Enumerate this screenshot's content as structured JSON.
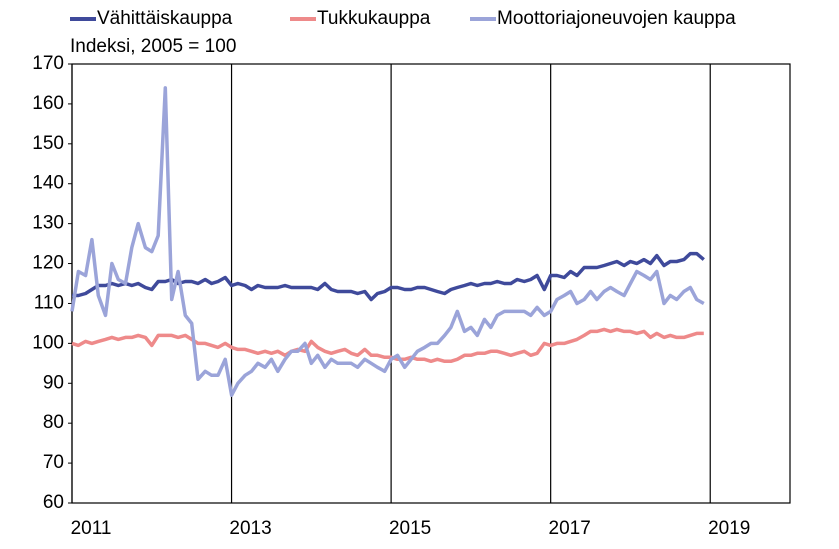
{
  "chart_data": {
    "type": "line",
    "subtitle": "Indeksi, 2005 = 100",
    "x": [
      2011.0,
      2011.08,
      2011.17,
      2011.25,
      2011.33,
      2011.42,
      2011.5,
      2011.58,
      2011.67,
      2011.75,
      2011.83,
      2011.92,
      2012.0,
      2012.08,
      2012.17,
      2012.25,
      2012.33,
      2012.42,
      2012.5,
      2012.58,
      2012.67,
      2012.75,
      2012.83,
      2012.92,
      2013.0,
      2013.08,
      2013.17,
      2013.25,
      2013.33,
      2013.42,
      2013.5,
      2013.58,
      2013.67,
      2013.75,
      2013.83,
      2013.92,
      2014.0,
      2014.08,
      2014.17,
      2014.25,
      2014.33,
      2014.42,
      2014.5,
      2014.58,
      2014.67,
      2014.75,
      2014.83,
      2014.92,
      2015.0,
      2015.08,
      2015.17,
      2015.25,
      2015.33,
      2015.42,
      2015.5,
      2015.58,
      2015.67,
      2015.75,
      2015.83,
      2015.92,
      2016.0,
      2016.08,
      2016.17,
      2016.25,
      2016.33,
      2016.42,
      2016.5,
      2016.58,
      2016.67,
      2016.75,
      2016.83,
      2016.92,
      2017.0,
      2017.08,
      2017.17,
      2017.25,
      2017.33,
      2017.42,
      2017.5,
      2017.58,
      2017.67,
      2017.75,
      2017.83,
      2017.92,
      2018.0,
      2018.08,
      2018.17,
      2018.25,
      2018.33,
      2018.42,
      2018.5,
      2018.58,
      2018.67,
      2018.75,
      2018.83,
      2018.92
    ],
    "series": [
      {
        "name": "Vähittäiskauppa",
        "color": "#3f4a9b",
        "values": [
          112,
          112,
          112.5,
          113.5,
          114.5,
          114.5,
          115,
          114.5,
          115,
          114.5,
          115,
          114,
          113.5,
          115.5,
          115.5,
          116,
          115,
          115.5,
          115.5,
          115,
          116,
          115,
          115.5,
          116.5,
          114.5,
          115,
          114.5,
          113.5,
          114.5,
          114,
          114,
          114,
          114.5,
          114,
          114,
          114,
          114,
          113.5,
          115,
          113.5,
          113,
          113,
          113,
          112.5,
          113,
          111,
          112.5,
          113,
          114,
          114,
          113.5,
          113.5,
          114,
          114,
          113.5,
          113,
          112.5,
          113.5,
          114,
          114.5,
          115,
          114.5,
          115,
          115,
          115.5,
          115,
          115,
          116,
          115.5,
          116,
          117,
          113.5,
          117,
          117,
          116.5,
          118,
          117,
          119,
          119,
          119,
          119.5,
          120,
          120.5,
          119.5,
          120.5,
          120,
          121,
          120,
          122,
          119.5,
          120.5,
          120.5,
          121,
          122.5,
          122.5,
          121
        ]
      },
      {
        "name": "Tukkukauppa",
        "color": "#ee8a8a",
        "values": [
          100,
          99.5,
          100.5,
          100,
          100.5,
          101,
          101.5,
          101,
          101.5,
          101.5,
          102,
          101.5,
          99.5,
          102,
          102,
          102,
          101.5,
          102,
          101,
          100,
          100,
          99.5,
          99,
          100,
          99,
          98.5,
          98.5,
          98,
          97.5,
          98,
          97.5,
          98,
          97,
          98,
          98.5,
          98,
          100.5,
          99,
          98,
          97.5,
          98,
          98.5,
          97.5,
          97,
          98.5,
          97,
          97,
          96.5,
          96.5,
          96,
          96,
          96.5,
          96,
          96,
          95.5,
          96,
          95.5,
          95.5,
          96,
          97,
          97,
          97.5,
          97.5,
          98,
          98,
          97.5,
          97,
          97.5,
          98,
          97,
          97.5,
          100,
          99.5,
          100,
          100,
          100.5,
          101,
          102,
          103,
          103,
          103.5,
          103,
          103.5,
          103,
          103,
          102.5,
          103,
          101.5,
          102.5,
          101.5,
          102,
          101.5,
          101.5,
          102,
          102.5,
          102.5
        ]
      },
      {
        "name": "Moottoriajoneuvojen kauppa",
        "color": "#9ba4d9",
        "values": [
          108,
          118,
          117,
          126,
          112,
          107,
          120,
          116,
          115,
          124,
          130,
          124,
          123,
          127,
          164,
          111,
          118,
          107,
          105,
          91,
          93,
          92,
          92,
          96,
          87,
          90,
          92,
          93,
          95,
          94,
          96,
          93,
          96,
          98,
          98,
          100,
          95,
          97,
          94,
          96,
          95,
          95,
          95,
          94,
          96,
          95,
          94,
          93,
          96,
          97,
          94,
          96,
          98,
          99,
          100,
          100,
          102,
          104,
          108,
          103,
          104,
          102,
          106,
          104,
          107,
          108,
          108,
          108,
          108,
          107,
          109,
          107,
          108,
          111,
          112,
          113,
          110,
          111,
          113,
          111,
          113,
          114,
          113,
          112,
          115,
          118,
          117,
          116,
          118,
          110,
          112,
          111,
          113,
          114,
          111,
          110
        ]
      }
    ],
    "xlim": [
      2011,
      2020
    ],
    "xticks": [
      2011,
      2013,
      2015,
      2017,
      2019
    ],
    "ylim": [
      60,
      170
    ],
    "yticks": [
      60,
      70,
      80,
      90,
      100,
      110,
      120,
      130,
      140,
      150,
      160,
      170
    ],
    "grid": "x"
  }
}
